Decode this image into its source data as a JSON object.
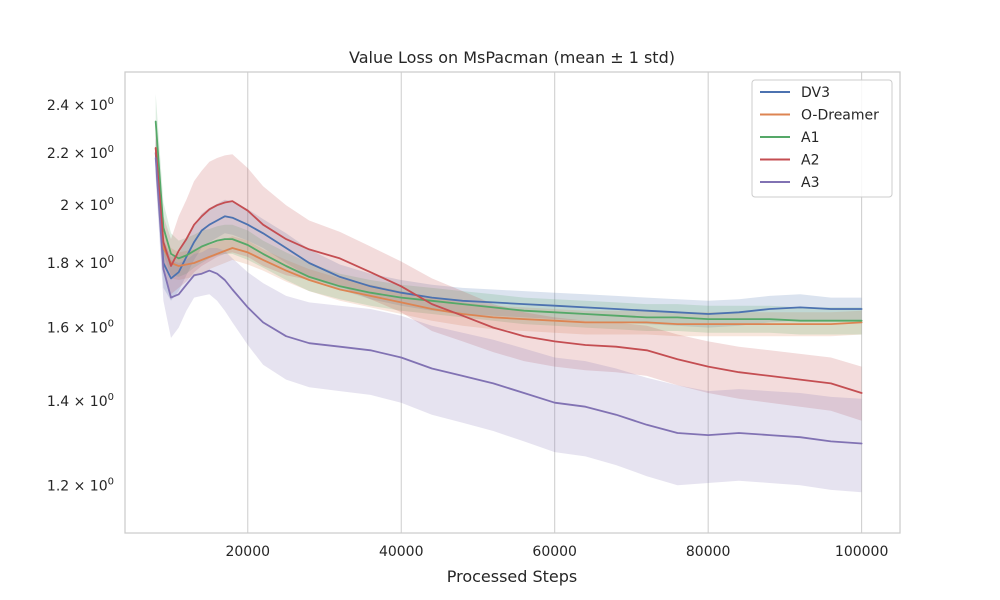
{
  "chart_data": {
    "type": "line",
    "title": "Value Loss on MsPacman (mean ± 1 std)",
    "xlabel": "Processed Steps",
    "ylabel": "",
    "xlim": [
      4000,
      105000
    ],
    "ylim": [
      1.1,
      2.55
    ],
    "yscale": "log",
    "grid": "vertical",
    "legend_position": "top-right",
    "x_ticks": [
      20000,
      40000,
      60000,
      80000,
      100000
    ],
    "x_tick_labels": [
      "20000",
      "40000",
      "60000",
      "80000",
      "100000"
    ],
    "y_ticks": [
      1.2,
      1.4,
      1.6,
      1.8,
      2.0,
      2.2,
      2.4
    ],
    "y_tick_mantissas": [
      "1.2",
      "1.4",
      "1.6",
      "1.8",
      "2",
      "2.2",
      "2.4"
    ],
    "y_tick_times": "× 10",
    "y_tick_exponent": "0",
    "x": [
      8000,
      9000,
      10000,
      11000,
      12000,
      13000,
      14000,
      15000,
      16000,
      17000,
      18000,
      20000,
      22000,
      25000,
      28000,
      32000,
      36000,
      40000,
      44000,
      48000,
      52000,
      56000,
      60000,
      64000,
      68000,
      72000,
      76000,
      80000,
      84000,
      88000,
      92000,
      96000,
      100000
    ],
    "series": [
      {
        "name": "DV3",
        "color": "#4c72b0",
        "values": [
          2.2,
          1.8,
          1.75,
          1.77,
          1.82,
          1.87,
          1.91,
          1.93,
          1.945,
          1.96,
          1.955,
          1.93,
          1.9,
          1.85,
          1.8,
          1.755,
          1.725,
          1.705,
          1.69,
          1.68,
          1.675,
          1.67,
          1.665,
          1.66,
          1.655,
          1.65,
          1.645,
          1.64,
          1.645,
          1.655,
          1.66,
          1.655,
          1.655
        ],
        "std": [
          0.09,
          0.08,
          0.07,
          0.06,
          0.06,
          0.06,
          0.06,
          0.06,
          0.06,
          0.06,
          0.06,
          0.055,
          0.05,
          0.05,
          0.045,
          0.04,
          0.04,
          0.04,
          0.04,
          0.04,
          0.04,
          0.04,
          0.04,
          0.04,
          0.04,
          0.04,
          0.04,
          0.04,
          0.04,
          0.04,
          0.04,
          0.035,
          0.035
        ]
      },
      {
        "name": "O-Dreamer",
        "color": "#dd8452",
        "values": [
          2.22,
          1.85,
          1.8,
          1.79,
          1.795,
          1.8,
          1.81,
          1.82,
          1.83,
          1.84,
          1.85,
          1.835,
          1.81,
          1.775,
          1.745,
          1.715,
          1.695,
          1.675,
          1.655,
          1.64,
          1.63,
          1.625,
          1.62,
          1.615,
          1.615,
          1.615,
          1.61,
          1.61,
          1.61,
          1.61,
          1.61,
          1.61,
          1.615
        ],
        "std": [
          0.07,
          0.06,
          0.05,
          0.045,
          0.045,
          0.045,
          0.045,
          0.04,
          0.04,
          0.04,
          0.04,
          0.04,
          0.035,
          0.035,
          0.035,
          0.035,
          0.035,
          0.035,
          0.035,
          0.035,
          0.035,
          0.035,
          0.035,
          0.035,
          0.035,
          0.035,
          0.035,
          0.035,
          0.035,
          0.035,
          0.035,
          0.035,
          0.035
        ]
      },
      {
        "name": "A1",
        "color": "#55a868",
        "values": [
          2.33,
          1.92,
          1.83,
          1.815,
          1.825,
          1.84,
          1.855,
          1.865,
          1.875,
          1.88,
          1.88,
          1.86,
          1.83,
          1.79,
          1.755,
          1.725,
          1.705,
          1.69,
          1.68,
          1.67,
          1.66,
          1.65,
          1.645,
          1.64,
          1.635,
          1.63,
          1.63,
          1.625,
          1.625,
          1.625,
          1.62,
          1.62,
          1.62
        ],
        "std": [
          0.12,
          0.09,
          0.07,
          0.06,
          0.06,
          0.055,
          0.055,
          0.05,
          0.05,
          0.05,
          0.05,
          0.05,
          0.045,
          0.045,
          0.045,
          0.04,
          0.04,
          0.04,
          0.04,
          0.04,
          0.04,
          0.04,
          0.04,
          0.04,
          0.04,
          0.04,
          0.04,
          0.04,
          0.04,
          0.04,
          0.04,
          0.04,
          0.04
        ]
      },
      {
        "name": "A2",
        "color": "#c44e52",
        "values": [
          2.22,
          1.87,
          1.79,
          1.84,
          1.88,
          1.93,
          1.96,
          1.985,
          2.0,
          2.01,
          2.015,
          1.98,
          1.93,
          1.88,
          1.845,
          1.815,
          1.77,
          1.725,
          1.67,
          1.635,
          1.6,
          1.575,
          1.56,
          1.55,
          1.545,
          1.535,
          1.51,
          1.49,
          1.475,
          1.465,
          1.455,
          1.445,
          1.42
        ],
        "std": [
          0.1,
          0.09,
          0.09,
          0.12,
          0.14,
          0.16,
          0.17,
          0.18,
          0.18,
          0.18,
          0.18,
          0.16,
          0.14,
          0.12,
          0.1,
          0.09,
          0.085,
          0.08,
          0.08,
          0.075,
          0.07,
          0.07,
          0.07,
          0.07,
          0.07,
          0.07,
          0.07,
          0.07,
          0.07,
          0.07,
          0.07,
          0.07,
          0.07
        ]
      },
      {
        "name": "A3",
        "color": "#8172b3",
        "values": [
          2.18,
          1.78,
          1.69,
          1.7,
          1.73,
          1.76,
          1.765,
          1.775,
          1.765,
          1.745,
          1.715,
          1.66,
          1.615,
          1.575,
          1.555,
          1.545,
          1.535,
          1.515,
          1.485,
          1.465,
          1.445,
          1.42,
          1.395,
          1.385,
          1.365,
          1.34,
          1.32,
          1.315,
          1.32,
          1.315,
          1.31,
          1.3,
          1.295
        ],
        "std": [
          0.08,
          0.1,
          0.12,
          0.1,
          0.08,
          0.07,
          0.07,
          0.075,
          0.085,
          0.095,
          0.1,
          0.11,
          0.12,
          0.12,
          0.12,
          0.12,
          0.12,
          0.12,
          0.12,
          0.12,
          0.12,
          0.12,
          0.12,
          0.12,
          0.12,
          0.12,
          0.12,
          0.11,
          0.11,
          0.11,
          0.11,
          0.11,
          0.11
        ]
      }
    ]
  }
}
